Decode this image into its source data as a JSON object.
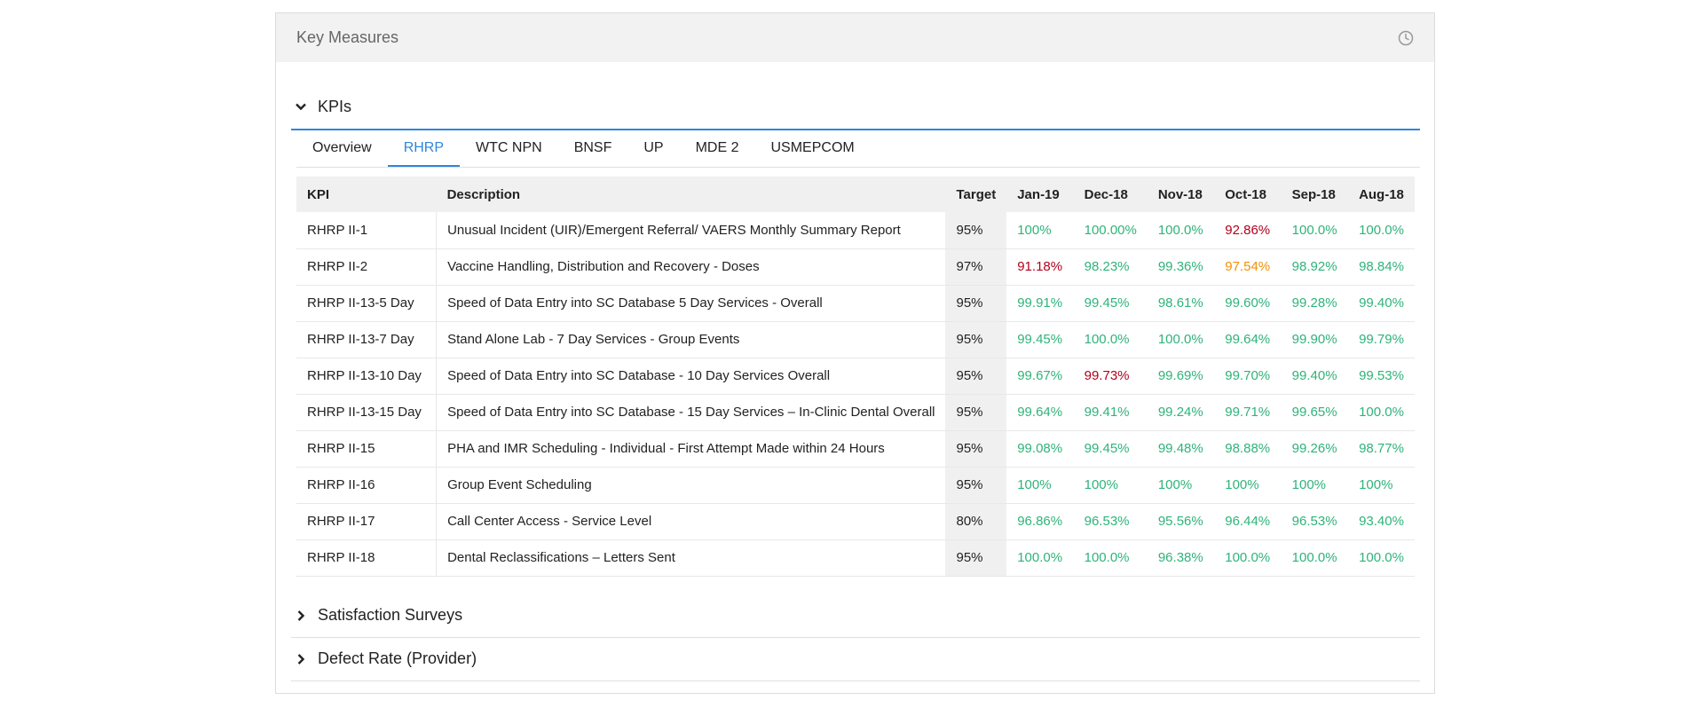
{
  "panel": {
    "title": "Key Measures"
  },
  "sections": {
    "kpis": "KPIs",
    "satisfaction": "Satisfaction Surveys",
    "defect": "Defect Rate (Provider)"
  },
  "tabs": [
    {
      "label": "Overview",
      "active": false
    },
    {
      "label": "RHRP",
      "active": true
    },
    {
      "label": "WTC NPN",
      "active": false
    },
    {
      "label": "BNSF",
      "active": false
    },
    {
      "label": "UP",
      "active": false
    },
    {
      "label": "MDE 2",
      "active": false
    },
    {
      "label": "USMEPCOM",
      "active": false
    }
  ],
  "colors": {
    "green": "#2fb37a",
    "red": "#b3001b",
    "orange": "#f29100",
    "accent": "#2e86de"
  },
  "table": {
    "headers": [
      "KPI",
      "Description",
      "Target",
      "Jan-19",
      "Dec-18",
      "Nov-18",
      "Oct-18",
      "Sep-18",
      "Aug-18"
    ],
    "rows": [
      {
        "kpi": "RHRP II-1",
        "description": "Unusual Incident (UIR)/Emergent Referral/ VAERS Monthly Summary Report",
        "target": "95%",
        "values": [
          [
            "100%",
            "green"
          ],
          [
            "100.00%",
            "green"
          ],
          [
            "100.0%",
            "green"
          ],
          [
            "92.86%",
            "red"
          ],
          [
            "100.0%",
            "green"
          ],
          [
            "100.0%",
            "green"
          ]
        ]
      },
      {
        "kpi": "RHRP II-2",
        "description": "Vaccine Handling, Distribution and Recovery - Doses",
        "target": "97%",
        "values": [
          [
            "91.18%",
            "red"
          ],
          [
            "98.23%",
            "green"
          ],
          [
            "99.36%",
            "green"
          ],
          [
            "97.54%",
            "orange"
          ],
          [
            "98.92%",
            "green"
          ],
          [
            "98.84%",
            "green"
          ]
        ]
      },
      {
        "kpi": "RHRP II-13-5 Day",
        "description": "Speed of Data Entry into SC Database 5 Day Services - Overall",
        "target": "95%",
        "values": [
          [
            "99.91%",
            "green"
          ],
          [
            "99.45%",
            "green"
          ],
          [
            "98.61%",
            "green"
          ],
          [
            "99.60%",
            "green"
          ],
          [
            "99.28%",
            "green"
          ],
          [
            "99.40%",
            "green"
          ]
        ]
      },
      {
        "kpi": "RHRP II-13-7 Day",
        "description": "Stand Alone Lab - 7 Day Services - Group Events",
        "target": "95%",
        "values": [
          [
            "99.45%",
            "green"
          ],
          [
            "100.0%",
            "green"
          ],
          [
            "100.0%",
            "green"
          ],
          [
            "99.64%",
            "green"
          ],
          [
            "99.90%",
            "green"
          ],
          [
            "99.79%",
            "green"
          ]
        ]
      },
      {
        "kpi": "RHRP II-13-10 Day",
        "description": "Speed of Data Entry into SC Database - 10 Day Services Overall",
        "target": "95%",
        "values": [
          [
            "99.67%",
            "green"
          ],
          [
            "99.73%",
            "red"
          ],
          [
            "99.69%",
            "green"
          ],
          [
            "99.70%",
            "green"
          ],
          [
            "99.40%",
            "green"
          ],
          [
            "99.53%",
            "green"
          ]
        ]
      },
      {
        "kpi": "RHRP II-13-15 Day",
        "description": "Speed of Data Entry into SC Database - 15 Day Services – In-Clinic Dental Overall",
        "target": "95%",
        "values": [
          [
            "99.64%",
            "green"
          ],
          [
            "99.41%",
            "green"
          ],
          [
            "99.24%",
            "green"
          ],
          [
            "99.71%",
            "green"
          ],
          [
            "99.65%",
            "green"
          ],
          [
            "100.0%",
            "green"
          ]
        ]
      },
      {
        "kpi": "RHRP II-15",
        "description": "PHA and IMR Scheduling - Individual - First Attempt Made within 24 Hours",
        "target": "95%",
        "values": [
          [
            "99.08%",
            "green"
          ],
          [
            "99.45%",
            "green"
          ],
          [
            "99.48%",
            "green"
          ],
          [
            "98.88%",
            "green"
          ],
          [
            "99.26%",
            "green"
          ],
          [
            "98.77%",
            "green"
          ]
        ]
      },
      {
        "kpi": "RHRP II-16",
        "description": "Group Event Scheduling",
        "target": "95%",
        "values": [
          [
            "100%",
            "green"
          ],
          [
            "100%",
            "green"
          ],
          [
            "100%",
            "green"
          ],
          [
            "100%",
            "green"
          ],
          [
            "100%",
            "green"
          ],
          [
            "100%",
            "green"
          ]
        ]
      },
      {
        "kpi": "RHRP II-17",
        "description": "Call Center Access - Service Level",
        "target": "80%",
        "values": [
          [
            "96.86%",
            "green"
          ],
          [
            "96.53%",
            "green"
          ],
          [
            "95.56%",
            "green"
          ],
          [
            "96.44%",
            "green"
          ],
          [
            "96.53%",
            "green"
          ],
          [
            "93.40%",
            "green"
          ]
        ]
      },
      {
        "kpi": "RHRP II-18",
        "description": "Dental Reclassifications – Letters Sent",
        "target": "95%",
        "values": [
          [
            "100.0%",
            "green"
          ],
          [
            "100.0%",
            "green"
          ],
          [
            "96.38%",
            "green"
          ],
          [
            "100.0%",
            "green"
          ],
          [
            "100.0%",
            "green"
          ],
          [
            "100.0%",
            "green"
          ]
        ]
      }
    ]
  }
}
